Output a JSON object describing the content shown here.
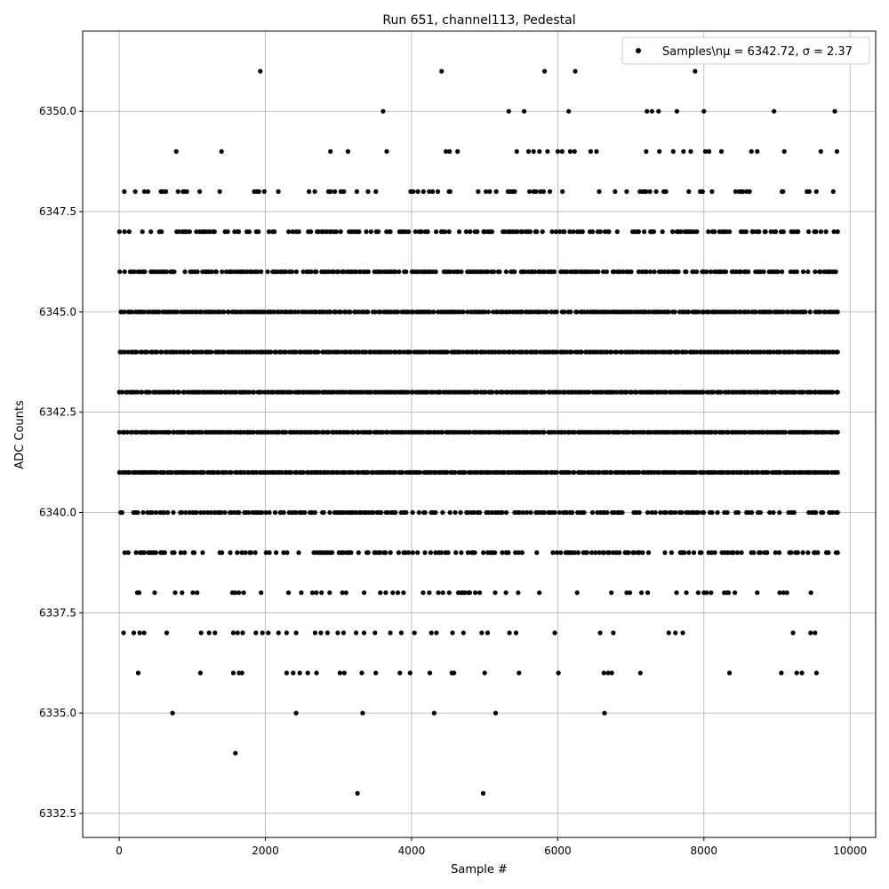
{
  "chart_data": {
    "type": "scatter",
    "title": "Run 651, channel113, Pedestal",
    "xlabel": "Sample #",
    "ylabel": "ADC Counts",
    "xlim": [
      -500,
      10350
    ],
    "ylim": [
      6331.9,
      6352.0
    ],
    "xticks": [
      0,
      2000,
      4000,
      6000,
      8000,
      10000
    ],
    "xtick_labels": [
      "0",
      "2000",
      "4000",
      "6000",
      "8000",
      "10000"
    ],
    "yticks": [
      6332.5,
      6335.0,
      6337.5,
      6340.0,
      6342.5,
      6345.0,
      6347.5,
      6350.0
    ],
    "ytick_labels": [
      "6332.5",
      "6335.0",
      "6337.5",
      "6340.0",
      "6342.5",
      "6345.0",
      "6347.5",
      "6350.0"
    ],
    "grid": true,
    "legend_position": "top-right",
    "series": [
      {
        "name": "Samples\\n$\\mu$ = 6342.72, $\\sigma$ = 2.37",
        "legend_label": "Samples\\nμ = 6342.72, σ = 2.37",
        "marker": "circle",
        "color": "#000000",
        "sample_x_range": [
          0,
          9830
        ],
        "dense_levels": [
          {
            "y": 6339,
            "density": 0.6
          },
          {
            "y": 6340,
            "density": 0.75
          },
          {
            "y": 6341,
            "density": 1.0
          },
          {
            "y": 6342,
            "density": 1.0
          },
          {
            "y": 6343,
            "density": 1.0
          },
          {
            "y": 6344,
            "density": 1.0
          },
          {
            "y": 6345,
            "density": 0.95
          },
          {
            "y": 6346,
            "density": 0.85
          },
          {
            "y": 6347,
            "density": 0.6
          },
          {
            "y": 6348,
            "density": 0.25
          },
          {
            "y": 6338,
            "density": 0.22
          }
        ],
        "sparse_points": [
          {
            "x": 60,
            "y": 6337
          },
          {
            "x": 200,
            "y": 6337
          },
          {
            "x": 280,
            "y": 6337
          },
          {
            "x": 340,
            "y": 6337
          },
          {
            "x": 650,
            "y": 6337
          },
          {
            "x": 1120,
            "y": 6337
          },
          {
            "x": 1230,
            "y": 6337
          },
          {
            "x": 1310,
            "y": 6337
          },
          {
            "x": 1560,
            "y": 6337
          },
          {
            "x": 1620,
            "y": 6337
          },
          {
            "x": 1690,
            "y": 6337
          },
          {
            "x": 1870,
            "y": 6337
          },
          {
            "x": 1960,
            "y": 6337
          },
          {
            "x": 2040,
            "y": 6337
          },
          {
            "x": 2180,
            "y": 6337
          },
          {
            "x": 2290,
            "y": 6337
          },
          {
            "x": 2420,
            "y": 6337
          },
          {
            "x": 2680,
            "y": 6337
          },
          {
            "x": 2760,
            "y": 6337
          },
          {
            "x": 2850,
            "y": 6337
          },
          {
            "x": 2990,
            "y": 6337
          },
          {
            "x": 3070,
            "y": 6337
          },
          {
            "x": 3240,
            "y": 6337
          },
          {
            "x": 3350,
            "y": 6337
          },
          {
            "x": 3500,
            "y": 6337
          },
          {
            "x": 3710,
            "y": 6337
          },
          {
            "x": 3860,
            "y": 6337
          },
          {
            "x": 4040,
            "y": 6337
          },
          {
            "x": 4270,
            "y": 6337
          },
          {
            "x": 4340,
            "y": 6337
          },
          {
            "x": 4560,
            "y": 6337
          },
          {
            "x": 4710,
            "y": 6337
          },
          {
            "x": 4960,
            "y": 6337
          },
          {
            "x": 5040,
            "y": 6337
          },
          {
            "x": 5340,
            "y": 6337
          },
          {
            "x": 5430,
            "y": 6337
          },
          {
            "x": 5960,
            "y": 6337
          },
          {
            "x": 6580,
            "y": 6337
          },
          {
            "x": 6760,
            "y": 6337
          },
          {
            "x": 7520,
            "y": 6337
          },
          {
            "x": 7610,
            "y": 6337
          },
          {
            "x": 7710,
            "y": 6337
          },
          {
            "x": 9220,
            "y": 6337
          },
          {
            "x": 9460,
            "y": 6337
          },
          {
            "x": 9520,
            "y": 6337
          },
          {
            "x": 260,
            "y": 6336
          },
          {
            "x": 1110,
            "y": 6336
          },
          {
            "x": 1560,
            "y": 6336
          },
          {
            "x": 1640,
            "y": 6336
          },
          {
            "x": 1680,
            "y": 6336
          },
          {
            "x": 2290,
            "y": 6336
          },
          {
            "x": 2380,
            "y": 6336
          },
          {
            "x": 2470,
            "y": 6336
          },
          {
            "x": 2580,
            "y": 6336
          },
          {
            "x": 2700,
            "y": 6336
          },
          {
            "x": 3020,
            "y": 6336
          },
          {
            "x": 3080,
            "y": 6336
          },
          {
            "x": 3320,
            "y": 6336
          },
          {
            "x": 3510,
            "y": 6336
          },
          {
            "x": 3840,
            "y": 6336
          },
          {
            "x": 3980,
            "y": 6336
          },
          {
            "x": 4250,
            "y": 6336
          },
          {
            "x": 4550,
            "y": 6336
          },
          {
            "x": 4580,
            "y": 6336
          },
          {
            "x": 5000,
            "y": 6336
          },
          {
            "x": 5470,
            "y": 6336
          },
          {
            "x": 6010,
            "y": 6336
          },
          {
            "x": 6630,
            "y": 6336
          },
          {
            "x": 6690,
            "y": 6336
          },
          {
            "x": 6740,
            "y": 6336
          },
          {
            "x": 7130,
            "y": 6336
          },
          {
            "x": 8350,
            "y": 6336
          },
          {
            "x": 9060,
            "y": 6336
          },
          {
            "x": 9270,
            "y": 6336
          },
          {
            "x": 9340,
            "y": 6336
          },
          {
            "x": 9540,
            "y": 6336
          },
          {
            "x": 730,
            "y": 6335
          },
          {
            "x": 2420,
            "y": 6335
          },
          {
            "x": 3330,
            "y": 6335
          },
          {
            "x": 4310,
            "y": 6335
          },
          {
            "x": 5150,
            "y": 6335
          },
          {
            "x": 6640,
            "y": 6335
          },
          {
            "x": 1590,
            "y": 6334
          },
          {
            "x": 3260,
            "y": 6333
          },
          {
            "x": 4980,
            "y": 6333
          },
          {
            "x": 780,
            "y": 6349
          },
          {
            "x": 1400,
            "y": 6349
          },
          {
            "x": 2890,
            "y": 6349
          },
          {
            "x": 3130,
            "y": 6349
          },
          {
            "x": 3660,
            "y": 6349
          },
          {
            "x": 4470,
            "y": 6349
          },
          {
            "x": 4520,
            "y": 6349
          },
          {
            "x": 4630,
            "y": 6349
          },
          {
            "x": 5440,
            "y": 6349
          },
          {
            "x": 5600,
            "y": 6349
          },
          {
            "x": 5670,
            "y": 6349
          },
          {
            "x": 5750,
            "y": 6349
          },
          {
            "x": 5860,
            "y": 6349
          },
          {
            "x": 6000,
            "y": 6349
          },
          {
            "x": 6060,
            "y": 6349
          },
          {
            "x": 6170,
            "y": 6349
          },
          {
            "x": 6230,
            "y": 6349
          },
          {
            "x": 6450,
            "y": 6349
          },
          {
            "x": 6530,
            "y": 6349
          },
          {
            "x": 7210,
            "y": 6349
          },
          {
            "x": 7390,
            "y": 6349
          },
          {
            "x": 7580,
            "y": 6349
          },
          {
            "x": 7720,
            "y": 6349
          },
          {
            "x": 7820,
            "y": 6349
          },
          {
            "x": 8020,
            "y": 6349
          },
          {
            "x": 8070,
            "y": 6349
          },
          {
            "x": 8240,
            "y": 6349
          },
          {
            "x": 8650,
            "y": 6349
          },
          {
            "x": 8730,
            "y": 6349
          },
          {
            "x": 9100,
            "y": 6349
          },
          {
            "x": 9600,
            "y": 6349
          },
          {
            "x": 9820,
            "y": 6349
          },
          {
            "x": 3610,
            "y": 6350
          },
          {
            "x": 5330,
            "y": 6350
          },
          {
            "x": 5540,
            "y": 6350
          },
          {
            "x": 6150,
            "y": 6350
          },
          {
            "x": 7220,
            "y": 6350
          },
          {
            "x": 7290,
            "y": 6350
          },
          {
            "x": 7380,
            "y": 6350
          },
          {
            "x": 7630,
            "y": 6350
          },
          {
            "x": 8000,
            "y": 6350
          },
          {
            "x": 8960,
            "y": 6350
          },
          {
            "x": 9790,
            "y": 6350
          },
          {
            "x": 1930,
            "y": 6351
          },
          {
            "x": 4410,
            "y": 6351
          },
          {
            "x": 5820,
            "y": 6351
          },
          {
            "x": 6240,
            "y": 6351
          },
          {
            "x": 7880,
            "y": 6351
          }
        ]
      }
    ]
  }
}
